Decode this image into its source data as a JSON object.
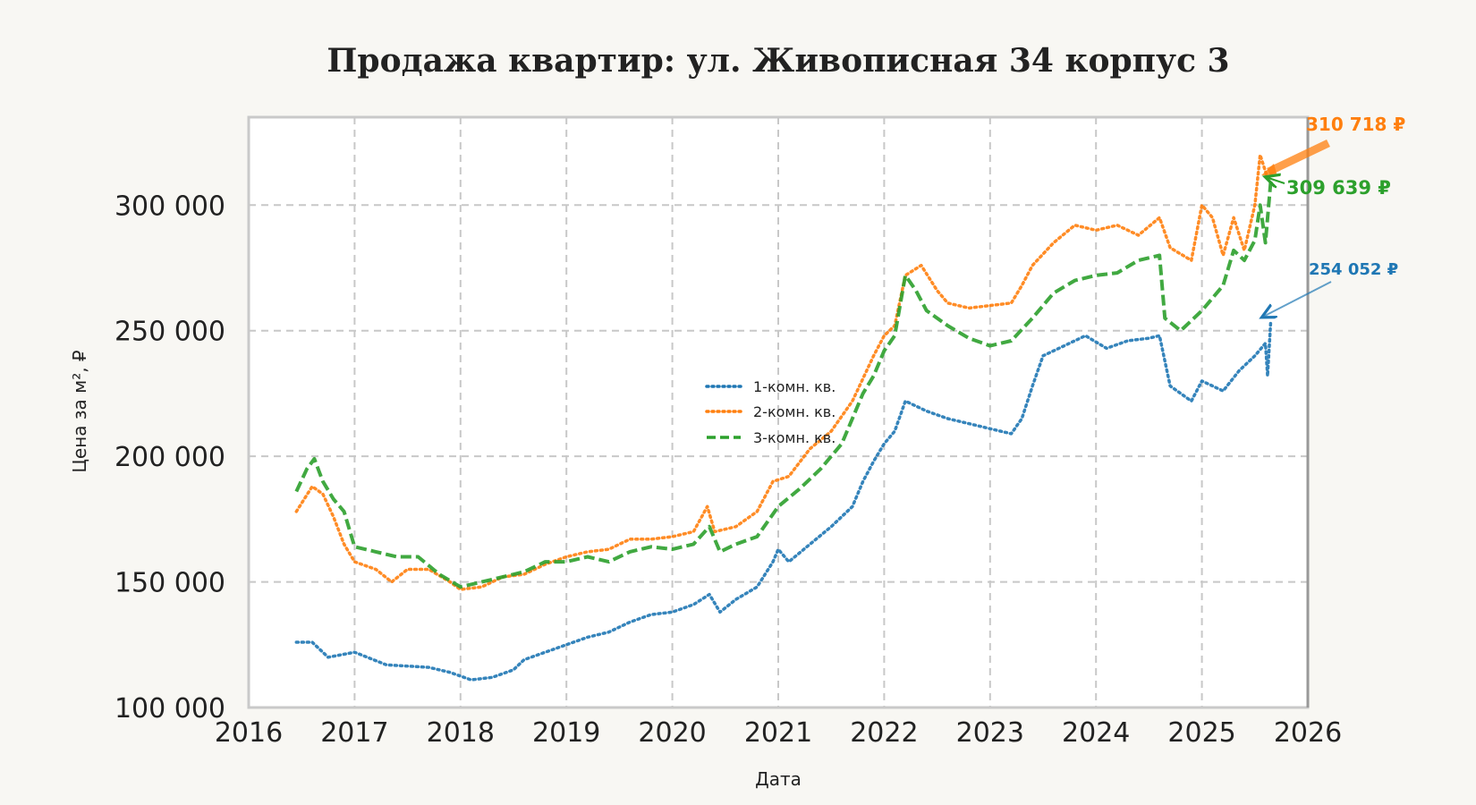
{
  "chart_data": {
    "type": "line",
    "title": "Продажа квартир: ул. Живописная 34 корпус 3",
    "xlabel": "Дата",
    "ylabel": "Цена за м², ₽",
    "xlim": [
      2016,
      2026
    ],
    "ylim": [
      100000,
      335000
    ],
    "x_ticks": [
      "2016",
      "2017",
      "2018",
      "2019",
      "2020",
      "2021",
      "2022",
      "2023",
      "2024",
      "2025",
      "2026"
    ],
    "y_ticks": [
      "100 000",
      "150 000",
      "200 000",
      "250 000",
      "300 000"
    ],
    "grid": true,
    "legend_position": "center",
    "series": [
      {
        "name": "1-комн. кв.",
        "color": "#1f77b4",
        "style": "dotted",
        "points": [
          [
            2016.45,
            126000
          ],
          [
            2016.6,
            126000
          ],
          [
            2016.75,
            120000
          ],
          [
            2017.0,
            122000
          ],
          [
            2017.3,
            117000
          ],
          [
            2017.7,
            116000
          ],
          [
            2017.9,
            114000
          ],
          [
            2018.1,
            111000
          ],
          [
            2018.3,
            112000
          ],
          [
            2018.5,
            115000
          ],
          [
            2018.6,
            119000
          ],
          [
            2018.8,
            122000
          ],
          [
            2019.0,
            125000
          ],
          [
            2019.2,
            128000
          ],
          [
            2019.4,
            130000
          ],
          [
            2019.6,
            134000
          ],
          [
            2019.8,
            137000
          ],
          [
            2020.0,
            138000
          ],
          [
            2020.2,
            141000
          ],
          [
            2020.35,
            145000
          ],
          [
            2020.45,
            138000
          ],
          [
            2020.6,
            143000
          ],
          [
            2020.8,
            148000
          ],
          [
            2020.95,
            158000
          ],
          [
            2021.0,
            163000
          ],
          [
            2021.1,
            158000
          ],
          [
            2021.3,
            165000
          ],
          [
            2021.5,
            172000
          ],
          [
            2021.7,
            180000
          ],
          [
            2021.8,
            190000
          ],
          [
            2021.9,
            198000
          ],
          [
            2022.0,
            205000
          ],
          [
            2022.1,
            210000
          ],
          [
            2022.2,
            222000
          ],
          [
            2022.4,
            218000
          ],
          [
            2022.6,
            215000
          ],
          [
            2022.8,
            213000
          ],
          [
            2023.0,
            211000
          ],
          [
            2023.2,
            209000
          ],
          [
            2023.3,
            215000
          ],
          [
            2023.4,
            228000
          ],
          [
            2023.5,
            240000
          ],
          [
            2023.7,
            244000
          ],
          [
            2023.9,
            248000
          ],
          [
            2024.1,
            243000
          ],
          [
            2024.3,
            246000
          ],
          [
            2024.5,
            247000
          ],
          [
            2024.6,
            248000
          ],
          [
            2024.7,
            228000
          ],
          [
            2024.9,
            222000
          ],
          [
            2025.0,
            230000
          ],
          [
            2025.2,
            226000
          ],
          [
            2025.35,
            234000
          ],
          [
            2025.5,
            240000
          ],
          [
            2025.6,
            245000
          ],
          [
            2025.62,
            232000
          ],
          [
            2025.65,
            254052
          ]
        ],
        "last_value_label": "254 052 ₽"
      },
      {
        "name": "2-комн. кв.",
        "color": "#ff7f0e",
        "style": "dotted",
        "points": [
          [
            2016.45,
            178000
          ],
          [
            2016.6,
            188000
          ],
          [
            2016.7,
            185000
          ],
          [
            2016.8,
            176000
          ],
          [
            2016.9,
            165000
          ],
          [
            2017.0,
            158000
          ],
          [
            2017.2,
            155000
          ],
          [
            2017.35,
            150000
          ],
          [
            2017.5,
            155000
          ],
          [
            2017.7,
            155000
          ],
          [
            2017.9,
            150000
          ],
          [
            2018.0,
            147000
          ],
          [
            2018.2,
            148000
          ],
          [
            2018.4,
            152000
          ],
          [
            2018.6,
            153000
          ],
          [
            2018.8,
            157000
          ],
          [
            2019.0,
            160000
          ],
          [
            2019.2,
            162000
          ],
          [
            2019.4,
            163000
          ],
          [
            2019.6,
            167000
          ],
          [
            2019.8,
            167000
          ],
          [
            2020.0,
            168000
          ],
          [
            2020.2,
            170000
          ],
          [
            2020.33,
            180000
          ],
          [
            2020.4,
            170000
          ],
          [
            2020.6,
            172000
          ],
          [
            2020.8,
            178000
          ],
          [
            2020.95,
            190000
          ],
          [
            2021.1,
            192000
          ],
          [
            2021.3,
            203000
          ],
          [
            2021.5,
            210000
          ],
          [
            2021.7,
            222000
          ],
          [
            2021.9,
            240000
          ],
          [
            2022.0,
            248000
          ],
          [
            2022.1,
            252000
          ],
          [
            2022.2,
            272000
          ],
          [
            2022.35,
            276000
          ],
          [
            2022.5,
            266000
          ],
          [
            2022.6,
            261000
          ],
          [
            2022.8,
            259000
          ],
          [
            2023.0,
            260000
          ],
          [
            2023.2,
            261000
          ],
          [
            2023.3,
            268000
          ],
          [
            2023.4,
            276000
          ],
          [
            2023.6,
            285000
          ],
          [
            2023.8,
            292000
          ],
          [
            2024.0,
            290000
          ],
          [
            2024.2,
            292000
          ],
          [
            2024.4,
            288000
          ],
          [
            2024.6,
            295000
          ],
          [
            2024.7,
            283000
          ],
          [
            2024.9,
            278000
          ],
          [
            2025.0,
            300000
          ],
          [
            2025.1,
            295000
          ],
          [
            2025.2,
            280000
          ],
          [
            2025.3,
            295000
          ],
          [
            2025.4,
            282000
          ],
          [
            2025.5,
            300000
          ],
          [
            2025.55,
            320000
          ],
          [
            2025.62,
            310718
          ]
        ],
        "last_value_label": "310 718 ₽"
      },
      {
        "name": "3-комн. кв.",
        "color": "#2ca02c",
        "style": "dashed",
        "points": [
          [
            2016.45,
            186000
          ],
          [
            2016.55,
            195000
          ],
          [
            2016.62,
            199000
          ],
          [
            2016.7,
            190000
          ],
          [
            2016.8,
            183000
          ],
          [
            2016.9,
            178000
          ],
          [
            2017.0,
            164000
          ],
          [
            2017.2,
            162000
          ],
          [
            2017.4,
            160000
          ],
          [
            2017.6,
            160000
          ],
          [
            2017.8,
            153000
          ],
          [
            2018.0,
            148000
          ],
          [
            2018.2,
            150000
          ],
          [
            2018.4,
            152000
          ],
          [
            2018.6,
            154000
          ],
          [
            2018.8,
            158000
          ],
          [
            2019.0,
            158000
          ],
          [
            2019.2,
            160000
          ],
          [
            2019.4,
            158000
          ],
          [
            2019.6,
            162000
          ],
          [
            2019.8,
            164000
          ],
          [
            2020.0,
            163000
          ],
          [
            2020.2,
            165000
          ],
          [
            2020.35,
            172000
          ],
          [
            2020.45,
            162000
          ],
          [
            2020.6,
            165000
          ],
          [
            2020.8,
            168000
          ],
          [
            2021.0,
            180000
          ],
          [
            2021.2,
            187000
          ],
          [
            2021.4,
            195000
          ],
          [
            2021.6,
            205000
          ],
          [
            2021.8,
            225000
          ],
          [
            2021.9,
            232000
          ],
          [
            2022.0,
            242000
          ],
          [
            2022.1,
            248000
          ],
          [
            2022.2,
            272000
          ],
          [
            2022.3,
            266000
          ],
          [
            2022.4,
            258000
          ],
          [
            2022.6,
            252000
          ],
          [
            2022.8,
            247000
          ],
          [
            2023.0,
            244000
          ],
          [
            2023.2,
            246000
          ],
          [
            2023.4,
            255000
          ],
          [
            2023.6,
            265000
          ],
          [
            2023.8,
            270000
          ],
          [
            2024.0,
            272000
          ],
          [
            2024.2,
            273000
          ],
          [
            2024.4,
            278000
          ],
          [
            2024.6,
            280000
          ],
          [
            2024.65,
            255000
          ],
          [
            2024.8,
            250000
          ],
          [
            2025.0,
            258000
          ],
          [
            2025.2,
            268000
          ],
          [
            2025.3,
            282000
          ],
          [
            2025.4,
            278000
          ],
          [
            2025.5,
            286000
          ],
          [
            2025.55,
            300000
          ],
          [
            2025.6,
            285000
          ],
          [
            2025.65,
            309639
          ]
        ],
        "last_value_label": "309 639 ₽"
      }
    ]
  }
}
